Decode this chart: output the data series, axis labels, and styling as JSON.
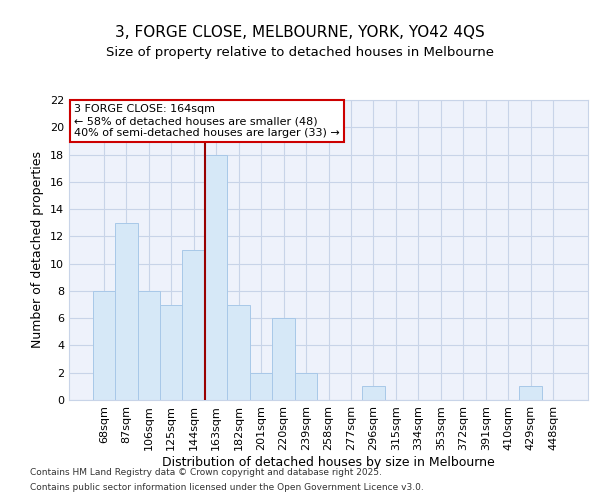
{
  "title": "3, FORGE CLOSE, MELBOURNE, YORK, YO42 4QS",
  "subtitle": "Size of property relative to detached houses in Melbourne",
  "xlabel": "Distribution of detached houses by size in Melbourne",
  "ylabel": "Number of detached properties",
  "categories": [
    "68sqm",
    "87sqm",
    "106sqm",
    "125sqm",
    "144sqm",
    "163sqm",
    "182sqm",
    "201sqm",
    "220sqm",
    "239sqm",
    "258sqm",
    "277sqm",
    "296sqm",
    "315sqm",
    "334sqm",
    "353sqm",
    "372sqm",
    "391sqm",
    "410sqm",
    "429sqm",
    "448sqm"
  ],
  "values": [
    8,
    13,
    8,
    7,
    11,
    18,
    7,
    2,
    6,
    2,
    0,
    0,
    1,
    0,
    0,
    0,
    0,
    0,
    0,
    1,
    0
  ],
  "bar_color": "#d6e8f7",
  "bar_edge_color": "#a8c8e8",
  "marker_index": 5,
  "marker_line_color": "#990000",
  "annotation_line1": "3 FORGE CLOSE: 164sqm",
  "annotation_line2": "← 58% of detached houses are smaller (48)",
  "annotation_line3": "40% of semi-detached houses are larger (33) →",
  "annotation_box_color": "#ffffff",
  "annotation_box_edge": "#cc0000",
  "grid_color": "#c8d4e8",
  "background_color": "#eef2fb",
  "ylim": [
    0,
    22
  ],
  "yticks": [
    0,
    2,
    4,
    6,
    8,
    10,
    12,
    14,
    16,
    18,
    20,
    22
  ],
  "footer_line1": "Contains HM Land Registry data © Crown copyright and database right 2025.",
  "footer_line2": "Contains public sector information licensed under the Open Government Licence v3.0.",
  "title_fontsize": 11,
  "subtitle_fontsize": 9.5,
  "tick_fontsize": 8,
  "ylabel_fontsize": 9,
  "xlabel_fontsize": 9,
  "annotation_fontsize": 8,
  "footer_fontsize": 6.5
}
